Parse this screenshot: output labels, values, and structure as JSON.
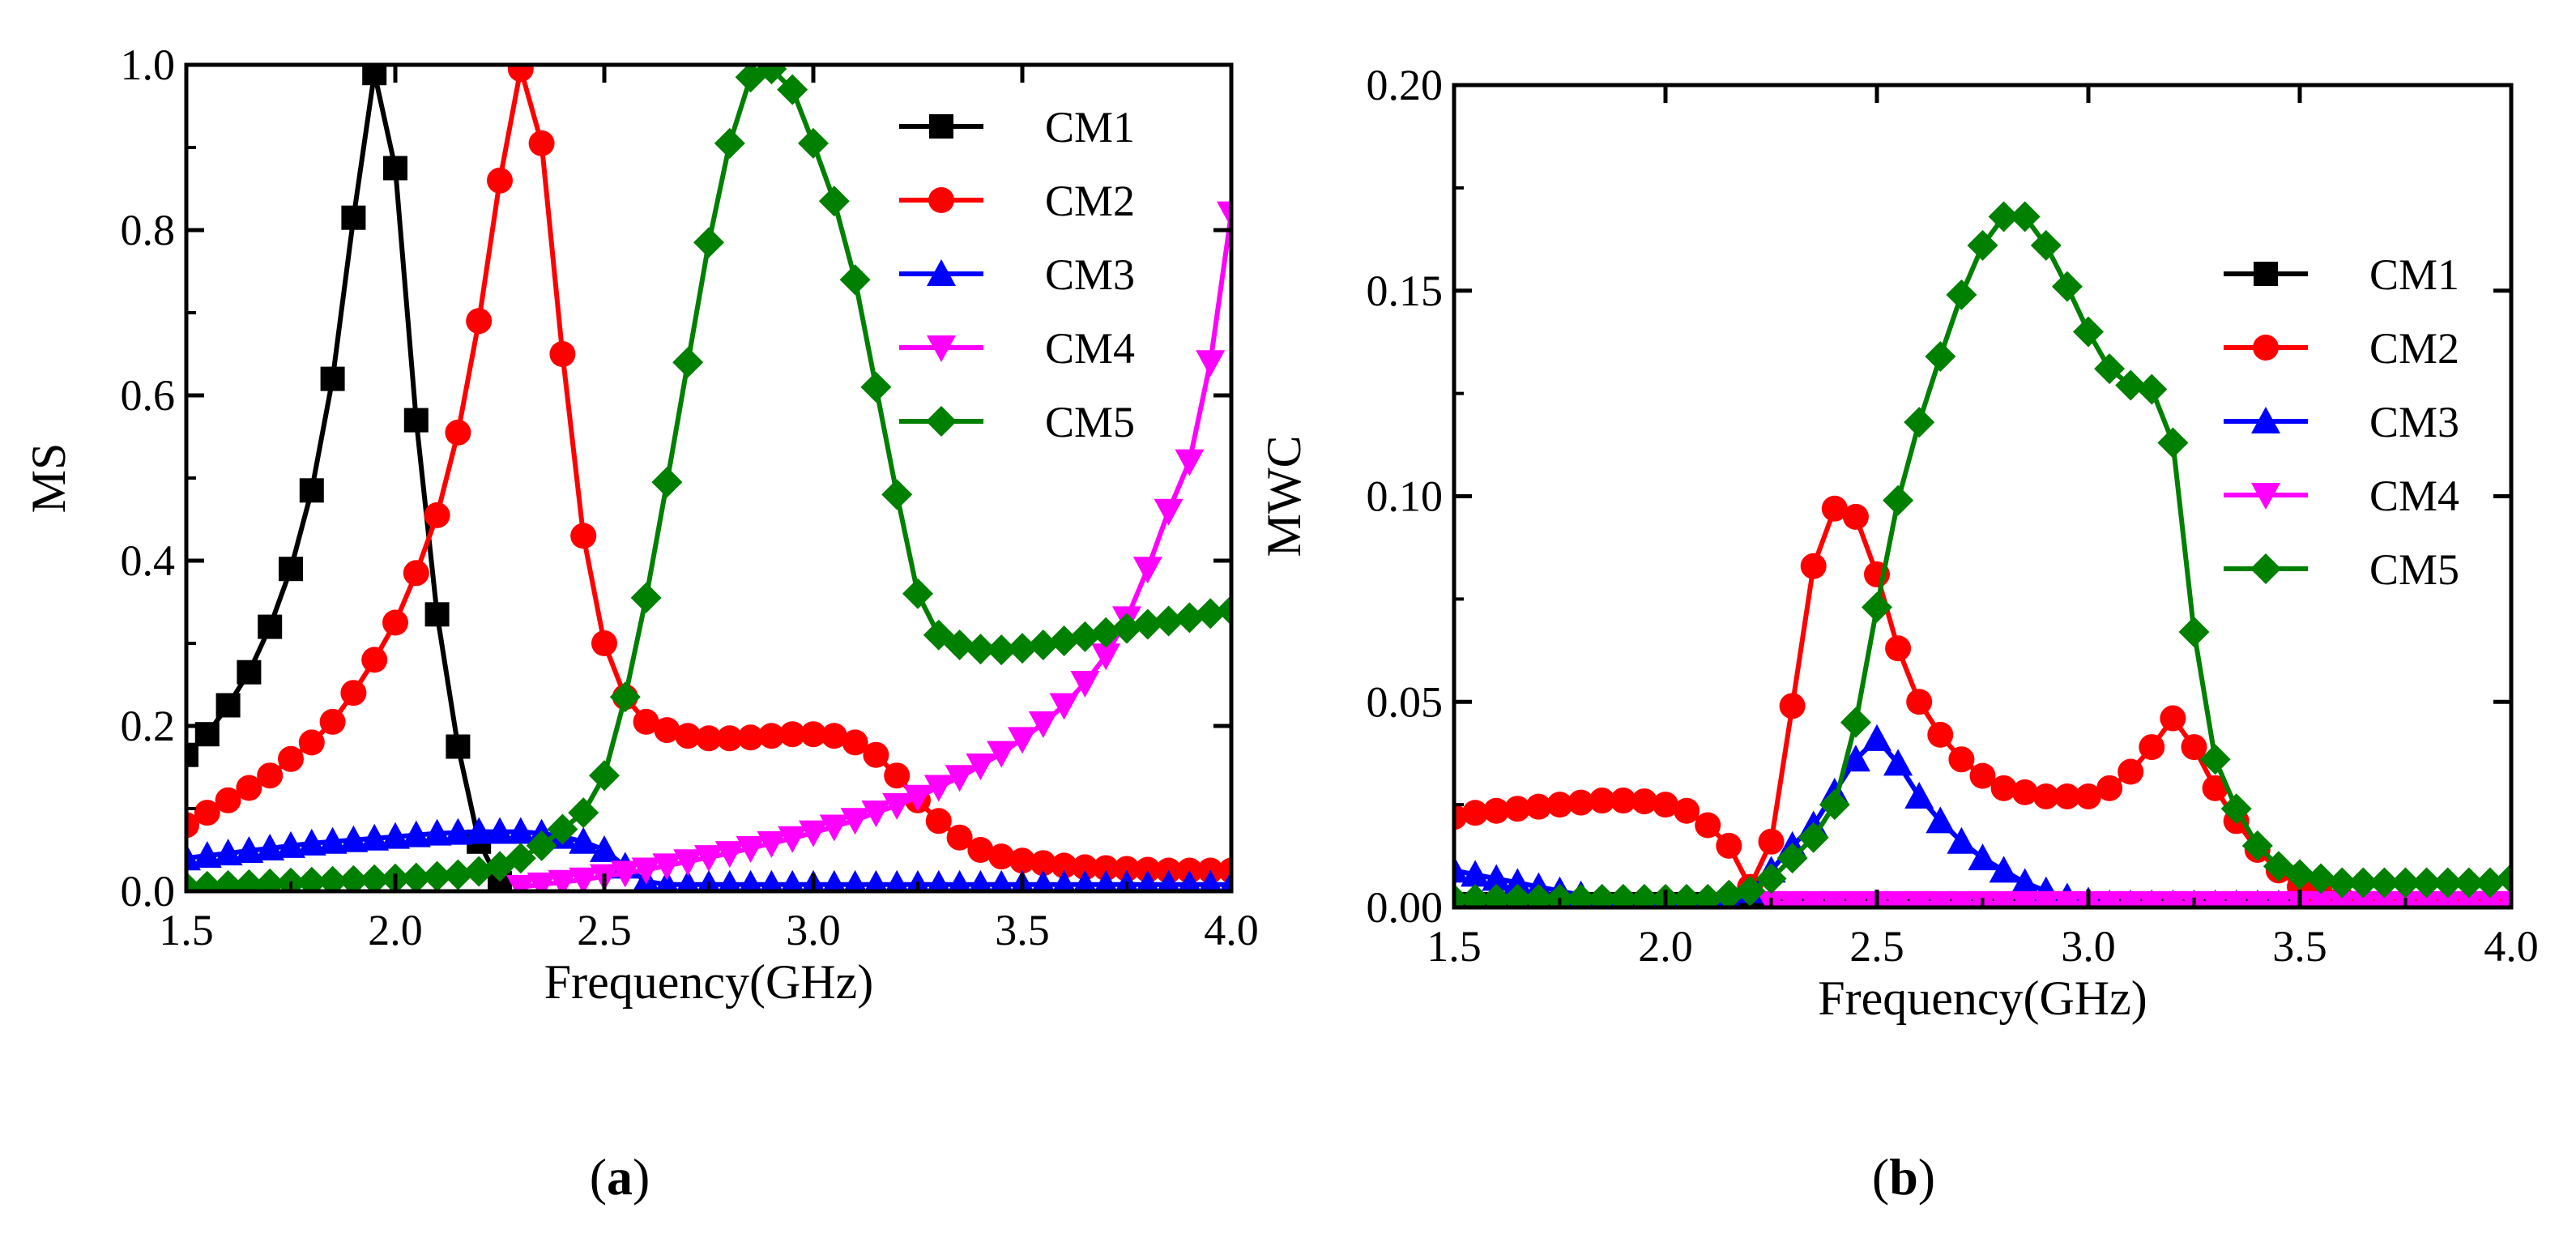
{
  "figure": {
    "panel_labels": [
      {
        "open": "(",
        "letter": "a",
        "close": ")"
      },
      {
        "open": "(",
        "letter": "b",
        "close": ")"
      }
    ]
  },
  "chart_data": [
    {
      "type": "line",
      "panel": "a",
      "title": "",
      "xlabel": "Frequency(GHz)",
      "ylabel": "MS",
      "xlim": [
        1.5,
        4.0
      ],
      "ylim": [
        0.0,
        1.0
      ],
      "xticks": [
        1.5,
        2.0,
        2.5,
        3.0,
        3.5,
        4.0
      ],
      "xtick_labels": [
        "1.5",
        "2.0",
        "2.5",
        "3.0",
        "3.5",
        "4.0"
      ],
      "yticks": [
        0.0,
        0.2,
        0.4,
        0.6,
        0.8,
        1.0
      ],
      "ytick_labels": [
        "0.0",
        "0.2",
        "0.4",
        "0.6",
        "0.8",
        "1.0"
      ],
      "legend_position": "top-right",
      "series": [
        {
          "name": "CM1",
          "color": "#000000",
          "marker": "square",
          "x": [
            1.5,
            1.55,
            1.6,
            1.65,
            1.7,
            1.75,
            1.8,
            1.85,
            1.9,
            1.95,
            2.0,
            2.05,
            2.1,
            2.15,
            2.2,
            2.25
          ],
          "y": [
            0.165,
            0.19,
            0.225,
            0.265,
            0.32,
            0.39,
            0.485,
            0.62,
            0.815,
            0.99,
            0.875,
            0.57,
            0.335,
            0.175,
            0.06,
            0.01
          ]
        },
        {
          "name": "CM2",
          "color": "#ff0000",
          "marker": "circle",
          "x": [
            1.5,
            1.55,
            1.6,
            1.65,
            1.7,
            1.75,
            1.8,
            1.85,
            1.9,
            1.95,
            2.0,
            2.05,
            2.1,
            2.15,
            2.2,
            2.25,
            2.3,
            2.35,
            2.4,
            2.45,
            2.5,
            2.55,
            2.6,
            2.65,
            2.7,
            2.75,
            2.8,
            2.85,
            2.9,
            2.95,
            3.0,
            3.05,
            3.1,
            3.15,
            3.2,
            3.25,
            3.3,
            3.35,
            3.4,
            3.45,
            3.5,
            3.55,
            3.6,
            3.65,
            3.7,
            3.75,
            3.8,
            3.85,
            3.9,
            3.95,
            4.0
          ],
          "y": [
            0.08,
            0.095,
            0.11,
            0.125,
            0.14,
            0.16,
            0.18,
            0.205,
            0.24,
            0.28,
            0.325,
            0.385,
            0.455,
            0.555,
            0.69,
            0.86,
            0.995,
            0.905,
            0.65,
            0.43,
            0.3,
            0.235,
            0.205,
            0.195,
            0.188,
            0.185,
            0.185,
            0.186,
            0.188,
            0.19,
            0.19,
            0.188,
            0.18,
            0.165,
            0.14,
            0.11,
            0.085,
            0.065,
            0.05,
            0.042,
            0.037,
            0.034,
            0.031,
            0.029,
            0.028,
            0.027,
            0.026,
            0.025,
            0.025,
            0.025,
            0.025
          ]
        },
        {
          "name": "CM3",
          "color": "#0000ff",
          "marker": "triangle-up",
          "x": [
            1.5,
            1.55,
            1.6,
            1.65,
            1.7,
            1.75,
            1.8,
            1.85,
            1.9,
            1.95,
            2.0,
            2.05,
            2.1,
            2.15,
            2.2,
            2.25,
            2.3,
            2.35,
            2.4,
            2.45,
            2.5,
            2.55,
            2.6,
            2.65,
            2.7,
            2.75,
            2.8,
            2.85,
            2.9,
            2.95,
            3.0,
            3.05,
            3.1,
            3.15,
            3.2,
            3.25,
            3.3,
            3.35,
            3.4,
            3.45,
            3.5,
            3.55,
            3.6,
            3.65,
            3.7,
            3.75,
            3.8,
            3.85,
            3.9,
            3.95,
            4.0
          ],
          "y": [
            0.04,
            0.043,
            0.046,
            0.049,
            0.052,
            0.055,
            0.058,
            0.06,
            0.062,
            0.064,
            0.066,
            0.068,
            0.07,
            0.071,
            0.072,
            0.072,
            0.072,
            0.07,
            0.066,
            0.06,
            0.05,
            0.03,
            0.012,
            0.008,
            0.008,
            0.008,
            0.008,
            0.008,
            0.008,
            0.008,
            0.008,
            0.008,
            0.008,
            0.008,
            0.008,
            0.008,
            0.008,
            0.008,
            0.008,
            0.008,
            0.008,
            0.008,
            0.008,
            0.008,
            0.008,
            0.008,
            0.008,
            0.008,
            0.008,
            0.008,
            0.008
          ]
        },
        {
          "name": "CM4",
          "color": "#ff00ff",
          "marker": "triangle-down",
          "x": [
            2.3,
            2.35,
            2.4,
            2.45,
            2.5,
            2.55,
            2.6,
            2.65,
            2.7,
            2.75,
            2.8,
            2.85,
            2.9,
            2.95,
            3.0,
            3.05,
            3.1,
            3.15,
            3.2,
            3.25,
            3.3,
            3.35,
            3.4,
            3.45,
            3.5,
            3.55,
            3.6,
            3.65,
            3.7,
            3.75,
            3.8,
            3.85,
            3.9,
            3.95,
            4.0
          ],
          "y": [
            0.005,
            0.008,
            0.011,
            0.014,
            0.018,
            0.022,
            0.026,
            0.031,
            0.036,
            0.041,
            0.046,
            0.052,
            0.058,
            0.064,
            0.071,
            0.078,
            0.086,
            0.095,
            0.104,
            0.114,
            0.126,
            0.138,
            0.152,
            0.167,
            0.184,
            0.203,
            0.225,
            0.252,
            0.285,
            0.33,
            0.39,
            0.46,
            0.52,
            0.64,
            0.82
          ]
        },
        {
          "name": "CM5",
          "color": "#008000",
          "marker": "diamond",
          "x": [
            1.5,
            1.55,
            1.6,
            1.65,
            1.7,
            1.75,
            1.8,
            1.85,
            1.9,
            1.95,
            2.0,
            2.05,
            2.1,
            2.15,
            2.2,
            2.25,
            2.3,
            2.35,
            2.4,
            2.45,
            2.5,
            2.55,
            2.6,
            2.65,
            2.7,
            2.75,
            2.8,
            2.85,
            2.9,
            2.95,
            3.0,
            3.05,
            3.1,
            3.15,
            3.2,
            3.25,
            3.3,
            3.35,
            3.4,
            3.45,
            3.5,
            3.55,
            3.6,
            3.65,
            3.7,
            3.75,
            3.8,
            3.85,
            3.9,
            3.95,
            4.0
          ],
          "y": [
            0.005,
            0.006,
            0.007,
            0.008,
            0.009,
            0.01,
            0.011,
            0.012,
            0.013,
            0.014,
            0.015,
            0.016,
            0.018,
            0.02,
            0.024,
            0.03,
            0.04,
            0.055,
            0.075,
            0.095,
            0.14,
            0.235,
            0.355,
            0.495,
            0.64,
            0.785,
            0.905,
            0.985,
            0.995,
            0.97,
            0.905,
            0.835,
            0.74,
            0.61,
            0.48,
            0.36,
            0.31,
            0.298,
            0.293,
            0.292,
            0.294,
            0.298,
            0.303,
            0.308,
            0.313,
            0.318,
            0.323,
            0.327,
            0.331,
            0.336,
            0.34
          ]
        }
      ]
    },
    {
      "type": "line",
      "panel": "b",
      "title": "",
      "xlabel": "Frequency(GHz)",
      "ylabel": "MWC",
      "xlim": [
        1.5,
        4.0
      ],
      "ylim": [
        0.0,
        0.2
      ],
      "xticks": [
        1.5,
        2.0,
        2.5,
        3.0,
        3.5,
        4.0
      ],
      "xtick_labels": [
        "1.5",
        "2.0",
        "2.5",
        "3.0",
        "3.5",
        "4.0"
      ],
      "yticks": [
        0.0,
        0.05,
        0.1,
        0.15,
        0.2
      ],
      "ytick_labels": [
        "0.00",
        "0.05",
        "0.10",
        "0.15",
        "0.20"
      ],
      "legend_position": "right",
      "series": [
        {
          "name": "CM1",
          "color": "#000000",
          "marker": "square",
          "x": [
            1.5,
            4.0
          ],
          "y": [
            0.0008,
            0.0008
          ]
        },
        {
          "name": "CM2",
          "color": "#ff0000",
          "marker": "circle",
          "x": [
            1.5,
            1.55,
            1.6,
            1.65,
            1.7,
            1.75,
            1.8,
            1.85,
            1.9,
            1.95,
            2.0,
            2.05,
            2.1,
            2.15,
            2.2,
            2.25,
            2.3,
            2.35,
            2.4,
            2.45,
            2.5,
            2.55,
            2.6,
            2.65,
            2.7,
            2.75,
            2.8,
            2.85,
            2.9,
            2.95,
            3.0,
            3.05,
            3.1,
            3.15,
            3.2,
            3.25,
            3.3,
            3.35,
            3.4,
            3.45,
            3.5,
            3.55,
            3.6,
            3.65,
            3.7,
            3.75,
            3.8,
            3.85,
            3.9,
            3.95,
            4.0
          ],
          "y": [
            0.022,
            0.023,
            0.0235,
            0.024,
            0.0245,
            0.025,
            0.0255,
            0.026,
            0.026,
            0.0258,
            0.025,
            0.0235,
            0.02,
            0.015,
            0.005,
            0.016,
            0.049,
            0.083,
            0.097,
            0.095,
            0.081,
            0.063,
            0.05,
            0.042,
            0.036,
            0.032,
            0.029,
            0.028,
            0.027,
            0.027,
            0.027,
            0.029,
            0.033,
            0.039,
            0.046,
            0.039,
            0.029,
            0.021,
            0.014,
            0.009,
            0.005,
            0.003,
            0.002,
            0.001,
            0.001,
            0.0008,
            0.0008,
            0.0008,
            0.0008,
            0.0008,
            0.0008
          ]
        },
        {
          "name": "CM3",
          "color": "#0000ff",
          "marker": "triangle-up",
          "x": [
            1.5,
            1.55,
            1.6,
            1.65,
            1.7,
            1.75,
            1.8,
            1.85,
            1.9,
            1.95,
            2.0,
            2.05,
            2.1,
            2.15,
            2.2,
            2.25,
            2.3,
            2.35,
            2.4,
            2.45,
            2.5,
            2.55,
            2.6,
            2.65,
            2.7,
            2.75,
            2.8,
            2.85,
            2.9,
            2.95,
            3.0,
            3.05,
            3.1,
            3.15,
            3.2,
            3.25,
            3.3,
            3.35,
            3.4,
            3.45,
            3.5,
            3.55,
            3.6,
            3.65,
            3.7,
            3.75,
            3.8,
            3.85,
            3.9,
            3.95,
            4.0
          ],
          "y": [
            0.009,
            0.008,
            0.007,
            0.006,
            0.005,
            0.004,
            0.003,
            0.002,
            0.0015,
            0.001,
            0.001,
            0.0008,
            0.0008,
            0.0015,
            0.004,
            0.009,
            0.015,
            0.02,
            0.028,
            0.036,
            0.041,
            0.035,
            0.027,
            0.021,
            0.016,
            0.012,
            0.009,
            0.006,
            0.004,
            0.0025,
            0.0015,
            0.0008,
            0.0008,
            0.0008,
            0.0008,
            0.0008,
            0.0008,
            0.0008,
            0.0008,
            0.0008,
            0.0008,
            0.0008,
            0.0008,
            0.0008,
            0.0008,
            0.0008,
            0.0008,
            0.0008,
            0.0008,
            0.0008,
            0.0008
          ]
        },
        {
          "name": "CM4",
          "color": "#ff00ff",
          "marker": "triangle-down",
          "x": [
            2.25,
            2.3,
            2.35,
            2.4,
            2.45,
            2.5,
            2.55,
            2.6,
            2.65,
            2.7,
            2.75,
            2.8,
            2.85,
            2.9,
            2.95,
            3.0,
            3.05,
            3.1,
            3.15,
            3.2,
            3.25,
            3.3,
            3.35,
            3.4,
            3.45,
            3.5,
            3.55,
            3.6,
            3.65,
            3.7,
            3.75,
            3.8,
            3.85,
            3.9,
            3.95,
            4.0
          ],
          "y": [
            0.001,
            0.001,
            0.001,
            0.001,
            0.001,
            0.001,
            0.001,
            0.001,
            0.001,
            0.001,
            0.001,
            0.001,
            0.001,
            0.001,
            0.001,
            0.001,
            0.001,
            0.001,
            0.001,
            0.001,
            0.001,
            0.001,
            0.001,
            0.001,
            0.001,
            0.001,
            0.001,
            0.001,
            0.001,
            0.001,
            0.001,
            0.001,
            0.001,
            0.001,
            0.001,
            0.001
          ]
        },
        {
          "name": "CM5",
          "color": "#008000",
          "marker": "diamond",
          "x": [
            1.5,
            1.55,
            1.6,
            1.65,
            1.7,
            1.75,
            1.8,
            1.85,
            1.9,
            1.95,
            2.0,
            2.05,
            2.1,
            2.15,
            2.2,
            2.25,
            2.3,
            2.35,
            2.4,
            2.45,
            2.5,
            2.55,
            2.6,
            2.65,
            2.7,
            2.75,
            2.8,
            2.85,
            2.9,
            2.95,
            3.0,
            3.05,
            3.1,
            3.15,
            3.2,
            3.25,
            3.3,
            3.35,
            3.4,
            3.45,
            3.5,
            3.55,
            3.6,
            3.65,
            3.7,
            3.75,
            3.8,
            3.85,
            3.9,
            3.95,
            4.0
          ],
          "y": [
            0.002,
            0.002,
            0.002,
            0.002,
            0.002,
            0.002,
            0.002,
            0.002,
            0.002,
            0.002,
            0.002,
            0.002,
            0.002,
            0.003,
            0.004,
            0.007,
            0.012,
            0.017,
            0.025,
            0.045,
            0.073,
            0.099,
            0.118,
            0.134,
            0.149,
            0.161,
            0.168,
            0.168,
            0.161,
            0.151,
            0.14,
            0.131,
            0.127,
            0.126,
            0.113,
            0.067,
            0.036,
            0.024,
            0.015,
            0.01,
            0.008,
            0.007,
            0.006,
            0.006,
            0.006,
            0.006,
            0.006,
            0.006,
            0.006,
            0.006,
            0.007
          ]
        }
      ]
    }
  ]
}
